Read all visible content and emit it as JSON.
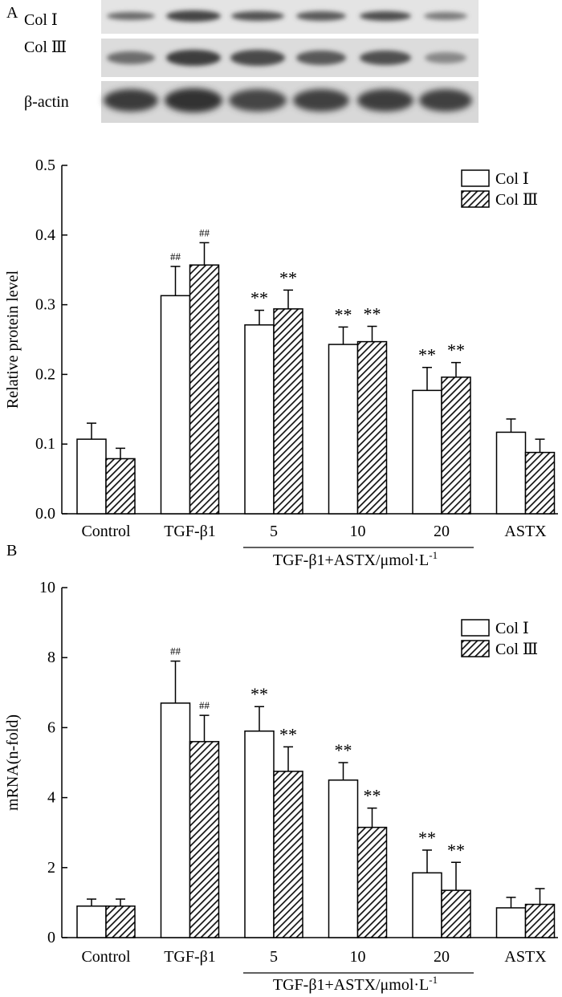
{
  "panel_a": {
    "letter": "A",
    "blot_labels": [
      "Col Ⅰ",
      "Col Ⅲ",
      "β-actin"
    ]
  },
  "panel_b": {
    "letter": "B"
  },
  "chart_data": [
    {
      "type": "bar",
      "title": "",
      "xlabel": "",
      "ylabel": "Relative protein level",
      "ylim": [
        0,
        0.5
      ],
      "yticks": [
        "0.0",
        "0.1",
        "0.2",
        "0.3",
        "0.4",
        "0.5"
      ],
      "categories": [
        "Control",
        "TGF-β1",
        "5",
        "10",
        "20",
        "ASTX"
      ],
      "group_label": "TGF-β1+ASTX/μmol·L",
      "group_label_sup": "-1",
      "legend": [
        "Col Ⅰ",
        "Col Ⅲ"
      ],
      "series": [
        {
          "name": "Col Ⅰ",
          "values": [
            0.107,
            0.313,
            0.271,
            0.243,
            0.177,
            0.117
          ],
          "errors": [
            0.023,
            0.042,
            0.021,
            0.025,
            0.033,
            0.019
          ],
          "marks": [
            "",
            "##",
            "**",
            "**",
            "**",
            ""
          ]
        },
        {
          "name": "Col Ⅲ",
          "values": [
            0.079,
            0.357,
            0.294,
            0.247,
            0.196,
            0.088
          ],
          "errors": [
            0.015,
            0.032,
            0.027,
            0.022,
            0.021,
            0.019
          ],
          "marks": [
            "",
            "##",
            "**",
            "**",
            "**",
            ""
          ]
        }
      ]
    },
    {
      "type": "bar",
      "title": "",
      "xlabel": "",
      "ylabel": "mRNA(n-fold)",
      "ylim": [
        0,
        10
      ],
      "yticks": [
        "0",
        "2",
        "4",
        "6",
        "8",
        "10"
      ],
      "categories": [
        "Control",
        "TGF-β1",
        "5",
        "10",
        "20",
        "ASTX"
      ],
      "group_label": "TGF-β1+ASTX/μmol·L",
      "group_label_sup": "-1",
      "legend": [
        "Col Ⅰ",
        "Col Ⅲ"
      ],
      "series": [
        {
          "name": "Col Ⅰ",
          "values": [
            0.9,
            6.7,
            5.9,
            4.5,
            1.85,
            0.85
          ],
          "errors": [
            0.2,
            1.2,
            0.7,
            0.5,
            0.65,
            0.3
          ],
          "marks": [
            "",
            "##",
            "**",
            "**",
            "**",
            ""
          ]
        },
        {
          "name": "Col Ⅲ",
          "values": [
            0.9,
            5.6,
            4.75,
            3.15,
            1.35,
            0.95
          ],
          "errors": [
            0.2,
            0.75,
            0.7,
            0.55,
            0.8,
            0.45
          ],
          "marks": [
            "",
            "##",
            "**",
            "**",
            "**",
            ""
          ]
        }
      ]
    }
  ]
}
